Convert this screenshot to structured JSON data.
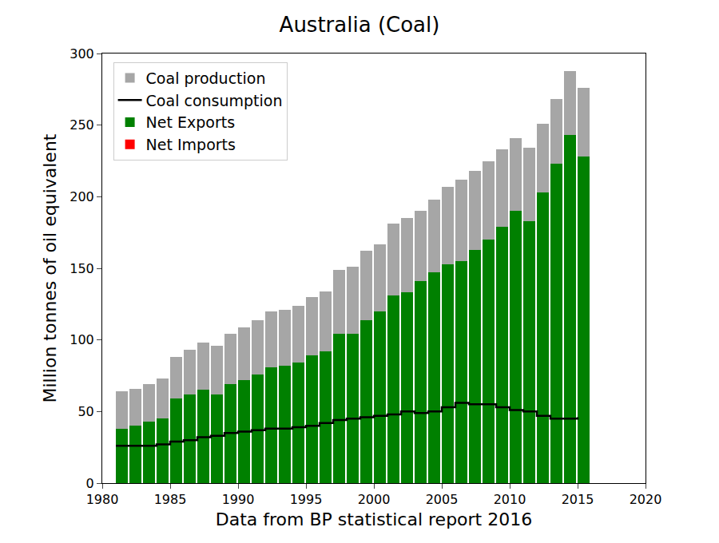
{
  "chart_data": {
    "type": "bar",
    "title": "Australia (Coal)",
    "x_label": "Data from BP statistical report 2016",
    "y_label": "Million tonnes of oil equivalent",
    "x": [
      1981,
      1982,
      1983,
      1984,
      1985,
      1986,
      1987,
      1988,
      1989,
      1990,
      1991,
      1992,
      1993,
      1994,
      1995,
      1996,
      1997,
      1998,
      1999,
      2000,
      2001,
      2002,
      2003,
      2004,
      2005,
      2006,
      2007,
      2008,
      2009,
      2010,
      2011,
      2012,
      2013,
      2014,
      2015
    ],
    "series": [
      {
        "name": "Coal production",
        "type": "bar",
        "color": "#a6a6a6",
        "values": [
          64,
          66,
          69,
          73,
          88,
          93,
          98,
          96,
          104,
          109,
          114,
          120,
          121,
          124,
          130,
          134,
          149,
          151,
          162,
          167,
          181,
          185,
          190,
          198,
          207,
          212,
          218,
          225,
          233,
          241,
          234,
          251,
          268,
          288,
          276
        ]
      },
      {
        "name": "Coal consumption",
        "type": "line",
        "color": "#000000",
        "line_style": "solid",
        "values": [
          26,
          26,
          26,
          27,
          29,
          30,
          32,
          33,
          35,
          36,
          37,
          38,
          38,
          39,
          40,
          42,
          44,
          45,
          46,
          47,
          48,
          50,
          49,
          50,
          53,
          56,
          55,
          55,
          53,
          51,
          50,
          47,
          45,
          45,
          46
        ]
      },
      {
        "name": "Net Exports",
        "type": "bar",
        "color": "#008000",
        "values": [
          38,
          40,
          43,
          45,
          59,
          62,
          65,
          62,
          69,
          72,
          76,
          81,
          82,
          84,
          89,
          92,
          104,
          104,
          114,
          120,
          131,
          133,
          141,
          147,
          153,
          155,
          163,
          170,
          179,
          190,
          183,
          203,
          223,
          243,
          228
        ]
      },
      {
        "name": "Net Imports",
        "type": "bar",
        "color": "#ff0000",
        "values": [
          0,
          0,
          0,
          0,
          0,
          0,
          0,
          0,
          0,
          0,
          0,
          0,
          0,
          0,
          0,
          0,
          0,
          0,
          0,
          0,
          0,
          0,
          0,
          0,
          0,
          0,
          0,
          0,
          0,
          0,
          0,
          0,
          0,
          0,
          0
        ]
      }
    ],
    "xlim": [
      1980,
      2020
    ],
    "xticks": [
      1980,
      1985,
      1990,
      1995,
      2000,
      2005,
      2010,
      2015,
      2020
    ],
    "ylim": [
      0,
      300
    ],
    "yticks": [
      0,
      50,
      100,
      150,
      200,
      250,
      300
    ],
    "grid": false,
    "legend": "upper left"
  }
}
